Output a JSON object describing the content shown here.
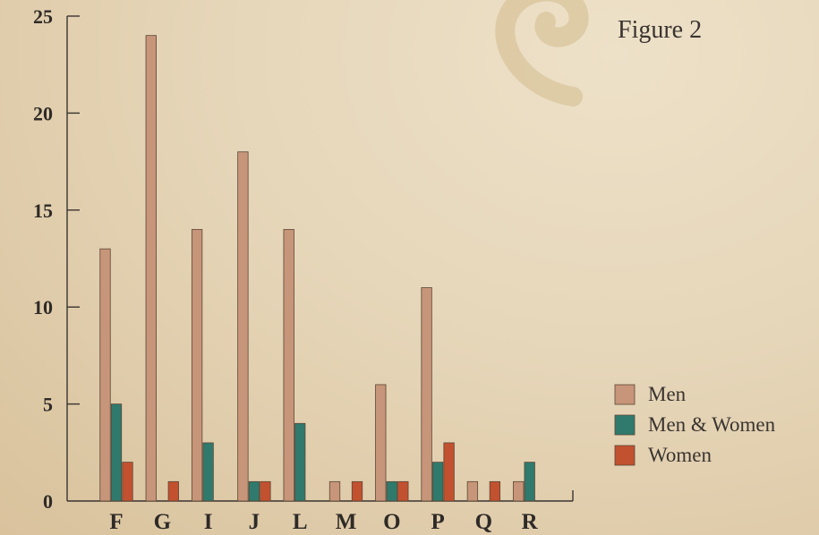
{
  "figure_title": "Figure 2",
  "chart_data": {
    "type": "bar",
    "categories": [
      "F",
      "G",
      "I",
      "J",
      "L",
      "M",
      "O",
      "P",
      "Q",
      "R"
    ],
    "series": [
      {
        "name": "Men",
        "color": "#c79579",
        "values": [
          13,
          24,
          14,
          18,
          14,
          1,
          6,
          11,
          1,
          1
        ]
      },
      {
        "name": "Men & Women",
        "color": "#2f7a6c",
        "values": [
          5,
          0,
          3,
          1,
          4,
          0,
          1,
          2,
          0,
          2
        ]
      },
      {
        "name": "Women",
        "color": "#c2512f",
        "values": [
          2,
          1,
          0,
          1,
          0,
          1,
          1,
          3,
          1,
          0
        ]
      }
    ],
    "ylim": [
      0,
      25
    ],
    "yticks": [
      "0",
      "5",
      "10",
      "15",
      "20",
      "25"
    ],
    "legend_position": "bottom-right",
    "grid": false
  }
}
